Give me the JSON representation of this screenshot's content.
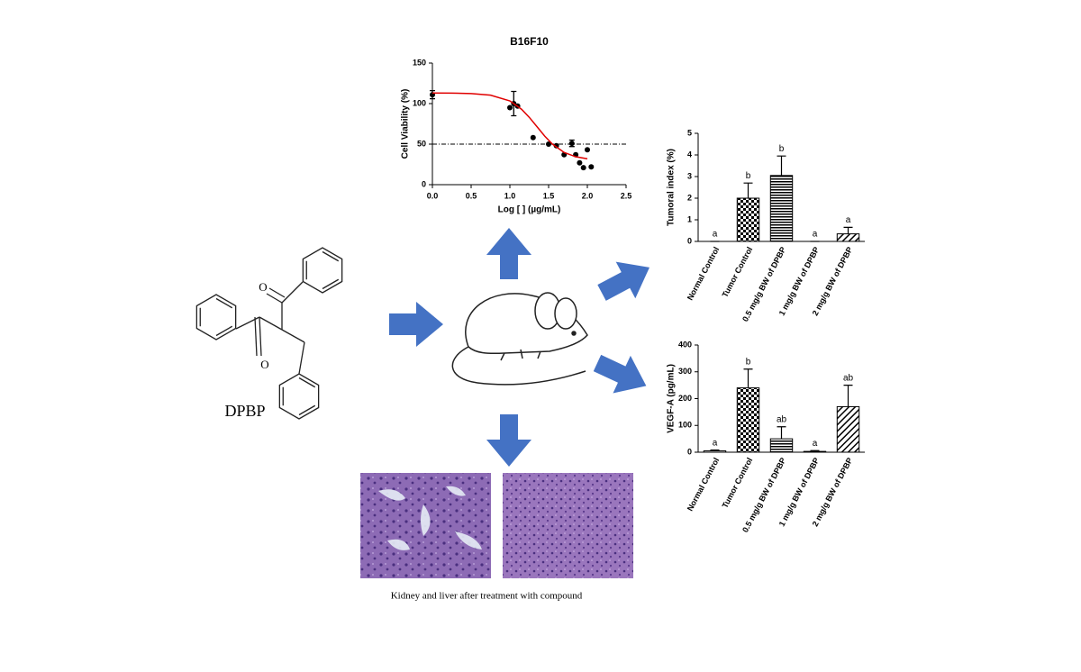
{
  "labels": {
    "compound": "DPBP",
    "oxygen_1": "O",
    "oxygen_2": "O",
    "caption": "Kidney and liver after treatment with compound"
  },
  "chart_data": [
    {
      "type": "scatter",
      "title": "B16F10",
      "x_label": "Log [ ] (µg/mL)",
      "y_label": "Cell Viability (%)",
      "xlim": [
        0,
        2.5
      ],
      "ylim": [
        0,
        150
      ],
      "xticks": [
        {
          "value": 0,
          "label": "0.0"
        },
        0.5,
        {
          "value": 1,
          "label": "1.0"
        },
        1.5,
        {
          "value": 2,
          "label": "2.0"
        },
        2.5
      ],
      "yticks": [
        0,
        50,
        100,
        150
      ],
      "reference_line": 50,
      "series": [
        {
          "type": "points",
          "color": "#000000",
          "x": [
            0,
            1.0,
            1.05,
            1.1,
            1.3,
            1.5,
            1.6,
            1.7,
            1.8,
            1.85,
            1.9,
            1.95,
            2.0,
            2.05
          ],
          "values": [
            111,
            95,
            100,
            97,
            58,
            50,
            48,
            37,
            51,
            37,
            27,
            21,
            43,
            22
          ],
          "errors": [
            5,
            null,
            15,
            null,
            null,
            null,
            null,
            null,
            4,
            null,
            null,
            null,
            null,
            null
          ]
        },
        {
          "type": "line",
          "color": "#e00000",
          "x": [
            0,
            0.25,
            0.5,
            0.75,
            1.0,
            1.15,
            1.25,
            1.35,
            1.45,
            1.55,
            1.7,
            1.85,
            2.0
          ],
          "values": [
            113,
            112.9,
            112.4,
            110.4,
            103.3,
            93.1,
            83.1,
            71.5,
            59.9,
            50,
            39.8,
            34.4,
            31.9
          ]
        }
      ]
    },
    {
      "type": "bar",
      "y_label": "Tumoral index (%)",
      "categories": [
        "Normal Control",
        "Tumor Control",
        "0.5 mg/g BW of DPBP",
        "1 mg/g BW of DPBP",
        "2 mg/g BW of DPBP"
      ],
      "values": [
        0,
        2.0,
        3.05,
        0,
        0.35
      ],
      "errors": [
        0,
        0.7,
        0.9,
        0,
        0.3
      ],
      "letters": [
        "a",
        "b",
        "b",
        "a",
        "a"
      ],
      "patterns": [
        "none",
        "check",
        "hlines",
        "none",
        "diag"
      ],
      "color": "#000000",
      "ylim": [
        0,
        5
      ],
      "yticks": [
        0,
        1,
        2,
        3,
        4,
        5
      ]
    },
    {
      "type": "bar",
      "y_label": "VEGF-A (pg/mL)",
      "categories": [
        "Normal Control",
        "Tumor Control",
        "0.5 mg/g BW of DPBP",
        "1 mg/g BW of DPBP",
        "2 mg/g BW of DPBP"
      ],
      "values": [
        5,
        240,
        50,
        3,
        170
      ],
      "errors": [
        3,
        70,
        45,
        3,
        80
      ],
      "letters": [
        "a",
        "b",
        "ab",
        "a",
        "ab"
      ],
      "patterns": [
        "none",
        "check",
        "hlines",
        "none",
        "diag"
      ],
      "color": "#000000",
      "ylim": [
        0,
        400
      ],
      "yticks": [
        0,
        100,
        200,
        300,
        400
      ]
    }
  ]
}
